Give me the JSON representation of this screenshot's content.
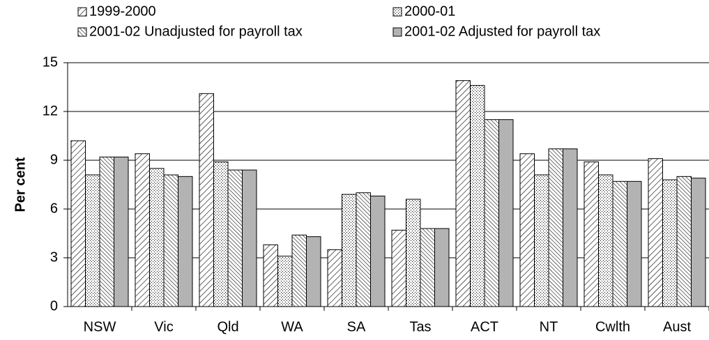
{
  "chart_data": {
    "type": "bar",
    "y_label": "Per cent",
    "categories": [
      "NSW",
      "Vic",
      "Qld",
      "WA",
      "SA",
      "Tas",
      "ACT",
      "NT",
      "Cwlth",
      "Aust"
    ],
    "series": [
      {
        "name": "1999-2000",
        "color": "#000000",
        "pattern": "hatch",
        "values": [
          10.2,
          9.4,
          13.1,
          3.8,
          3.5,
          4.7,
          13.9,
          9.4,
          8.9,
          9.1
        ]
      },
      {
        "name": "2000-01",
        "color": "#000000",
        "pattern": "dots",
        "values": [
          8.1,
          8.5,
          8.9,
          3.1,
          6.9,
          6.6,
          13.6,
          8.1,
          8.1,
          7.8
        ]
      },
      {
        "name": "2001-02 Unadjusted for payroll tax",
        "color": "#000000",
        "pattern": "crosshatch",
        "values": [
          9.2,
          8.1,
          8.4,
          4.4,
          7.0,
          4.8,
          11.5,
          9.7,
          7.7,
          8.0
        ]
      },
      {
        "name": "2001-02 Adjusted for payroll tax",
        "color": "#b3b3b3",
        "pattern": "solid",
        "values": [
          9.2,
          8.0,
          8.4,
          4.3,
          6.8,
          4.8,
          11.5,
          9.7,
          7.7,
          7.9
        ]
      }
    ],
    "ylim": [
      0,
      15
    ],
    "yticks": [
      0,
      3,
      6,
      9,
      12,
      15
    ],
    "grid": true,
    "legend": "top"
  }
}
